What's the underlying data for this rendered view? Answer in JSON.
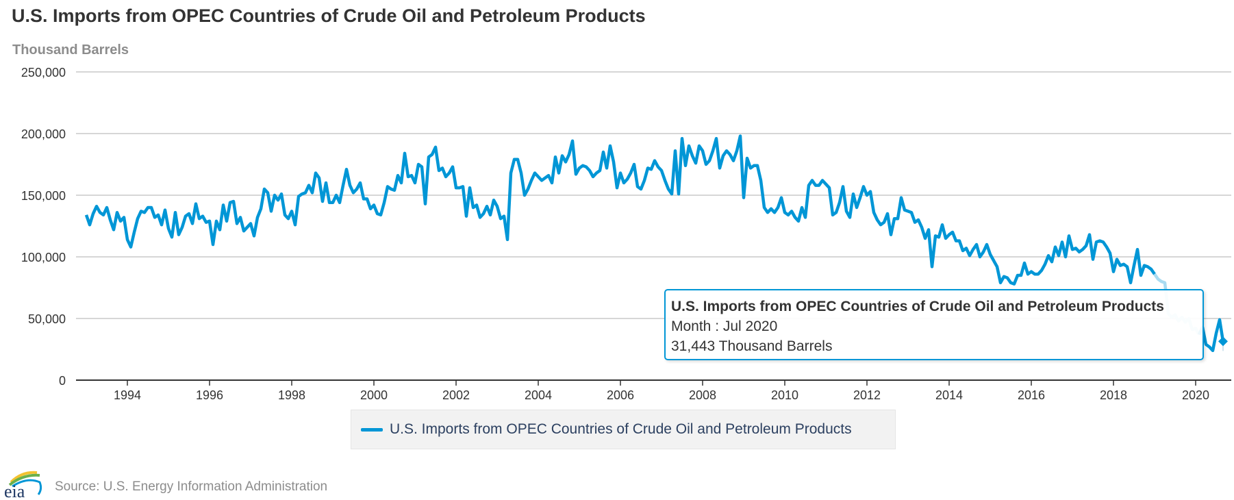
{
  "header": {
    "title": "U.S. Imports from OPEC Countries of Crude Oil and Petroleum Products",
    "unit_label": "Thousand Barrels"
  },
  "footer": {
    "source": "Source: U.S. Energy Information Administration",
    "logo_text": "eia"
  },
  "tooltip": {
    "title": "U.S. Imports from OPEC Countries of Crude Oil and Petroleum Products",
    "month_line": "Month : Jul 2020",
    "value_line": "31,443 Thousand Barrels"
  },
  "colors": {
    "series": "#0096d6",
    "series_faded": "#a9dbf1",
    "grid": "#c8c8c8",
    "axis": "#333333"
  },
  "chart_data": {
    "type": "line",
    "title": "U.S. Imports from OPEC Countries of Crude Oil and Petroleum Products",
    "ylabel": "Thousand Barrels",
    "xlabel": "",
    "ylim": [
      0,
      250000
    ],
    "yticks": [
      0,
      50000,
      100000,
      150000,
      200000,
      250000
    ],
    "ytick_labels": [
      "0",
      "50,000",
      "100,000",
      "150,000",
      "200,000",
      "250,000"
    ],
    "xticks": [
      1994,
      1996,
      1998,
      2000,
      2002,
      2004,
      2006,
      2008,
      2010,
      2012,
      2014,
      2016,
      2018,
      2020
    ],
    "xtick_labels": [
      "1994",
      "1996",
      "1998",
      "2000",
      "2002",
      "2004",
      "2006",
      "2008",
      "2010",
      "2012",
      "2014",
      "2016",
      "2018",
      "2020"
    ],
    "grid": true,
    "legend": "bottom-center",
    "x_start": "1993-01",
    "x_end": "2020-07",
    "frequency": "monthly",
    "highlight": {
      "month": "Jul 2020",
      "value": 31443
    },
    "series": [
      {
        "name": "U.S. Imports from OPEC Countries of Crude Oil and Petroleum Products",
        "values": [
          134000,
          126000,
          135000,
          141000,
          136000,
          134000,
          140000,
          130000,
          122000,
          136000,
          129000,
          132000,
          114000,
          108000,
          120000,
          131000,
          137000,
          136000,
          140000,
          140000,
          132000,
          134000,
          126000,
          138000,
          123000,
          116000,
          136000,
          118000,
          124000,
          133000,
          135000,
          127000,
          143000,
          131000,
          133000,
          128000,
          129000,
          110000,
          129000,
          122000,
          142000,
          129000,
          144000,
          145000,
          127000,
          132000,
          121000,
          124000,
          127000,
          117000,
          132000,
          139000,
          155000,
          152000,
          137000,
          150000,
          146000,
          151000,
          134000,
          131000,
          137000,
          126000,
          149000,
          151000,
          152000,
          158000,
          152000,
          168000,
          164000,
          145000,
          160000,
          144000,
          144000,
          150000,
          144000,
          158000,
          171000,
          158000,
          152000,
          155000,
          160000,
          147000,
          147000,
          139000,
          142000,
          135000,
          134000,
          144000,
          157000,
          155000,
          154000,
          166000,
          160000,
          184000,
          165000,
          166000,
          160000,
          175000,
          173000,
          143000,
          181000,
          183000,
          189000,
          170000,
          172000,
          165000,
          168000,
          173000,
          156000,
          156000,
          157000,
          133000,
          156000,
          140000,
          142000,
          132000,
          135000,
          141000,
          134000,
          146000,
          141000,
          131000,
          133000,
          114000,
          168000,
          179000,
          179000,
          168000,
          150000,
          155000,
          162000,
          168000,
          165000,
          162000,
          164000,
          166000,
          160000,
          181000,
          168000,
          182000,
          177000,
          183000,
          194000,
          167000,
          172000,
          174000,
          173000,
          170000,
          165000,
          168000,
          170000,
          185000,
          172000,
          190000,
          177000,
          156000,
          168000,
          160000,
          163000,
          168000,
          175000,
          157000,
          155000,
          162000,
          172000,
          171000,
          178000,
          173000,
          170000,
          162000,
          155000,
          151000,
          186000,
          151000,
          196000,
          174000,
          190000,
          182000,
          176000,
          190000,
          186000,
          175000,
          178000,
          186000,
          196000,
          172000,
          182000,
          186000,
          183000,
          178000,
          186000,
          198000,
          148000,
          180000,
          172000,
          174000,
          174000,
          162000,
          140000,
          136000,
          139000,
          136000,
          140000,
          148000,
          136000,
          134000,
          137000,
          132000,
          129000,
          140000,
          132000,
          158000,
          162000,
          158000,
          158000,
          162000,
          159000,
          156000,
          134000,
          136000,
          144000,
          157000,
          137000,
          132000,
          151000,
          140000,
          148000,
          157000,
          150000,
          153000,
          136000,
          130000,
          126000,
          128000,
          135000,
          118000,
          131000,
          131000,
          148000,
          138000,
          137000,
          136000,
          128000,
          130000,
          124000,
          115000,
          122000,
          92000,
          117000,
          116000,
          126000,
          115000,
          118000,
          120000,
          113000,
          113000,
          105000,
          107000,
          101000,
          106000,
          110000,
          100000,
          104000,
          110000,
          102000,
          97000,
          92000,
          79000,
          84000,
          83000,
          79000,
          78000,
          85000,
          85000,
          95000,
          86000,
          88000,
          86000,
          86000,
          89000,
          94000,
          101000,
          96000,
          108000,
          101000,
          112000,
          100000,
          117000,
          106000,
          107000,
          104000,
          106000,
          109000,
          118000,
          98000,
          112000,
          113000,
          112000,
          108000,
          103000,
          88000,
          98000,
          93000,
          94000,
          92000,
          79000,
          93000,
          106000,
          85000,
          93000,
          92000,
          90000,
          86000,
          82000,
          80000,
          79000,
          54000,
          51000,
          53000,
          48000,
          51000,
          47000,
          50000,
          41000,
          42000,
          37000,
          43000,
          29000,
          27000,
          24000,
          38000,
          49000,
          31443
        ]
      }
    ],
    "faded_range": {
      "from": "2019-01",
      "to": "2020-02"
    }
  }
}
